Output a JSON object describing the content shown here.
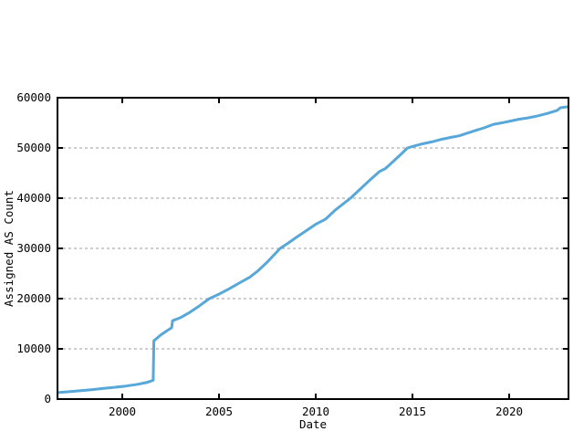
{
  "chart_data": {
    "type": "line",
    "title": "",
    "xlabel": "Date",
    "ylabel": "Assigned AS Count",
    "xlim": [
      1996.65,
      2023.07
    ],
    "ylim": [
      0,
      60000
    ],
    "xticks": [
      2000,
      2005,
      2010,
      2015,
      2020
    ],
    "yticks": [
      0,
      10000,
      20000,
      30000,
      40000,
      50000,
      60000
    ],
    "grid": {
      "horizontal": true,
      "vertical": false,
      "style": "dashed"
    },
    "legend": "none",
    "colors": {
      "line": "#58a7d9",
      "grid": "#9b9b9b",
      "border": "#000000",
      "text": "#000000",
      "background": "#ffffff"
    },
    "line_width": 3,
    "series": [
      {
        "name": "assigned-as-count",
        "points": [
          [
            1996.65,
            1300
          ],
          [
            1997.2,
            1450
          ],
          [
            1997.8,
            1650
          ],
          [
            1998.4,
            1850
          ],
          [
            1999.0,
            2100
          ],
          [
            1999.6,
            2350
          ],
          [
            2000.2,
            2600
          ],
          [
            2000.8,
            2950
          ],
          [
            2001.3,
            3350
          ],
          [
            2001.6,
            3750
          ],
          [
            2001.63,
            11600
          ],
          [
            2002.0,
            12800
          ],
          [
            2002.35,
            13700
          ],
          [
            2002.55,
            14200
          ],
          [
            2002.6,
            15600
          ],
          [
            2003.0,
            16200
          ],
          [
            2003.5,
            17300
          ],
          [
            2004.0,
            18600
          ],
          [
            2004.5,
            20000
          ],
          [
            2005.0,
            20900
          ],
          [
            2005.5,
            21900
          ],
          [
            2006.0,
            23000
          ],
          [
            2006.6,
            24300
          ],
          [
            2007.0,
            25500
          ],
          [
            2007.5,
            27300
          ],
          [
            2008.16,
            30000
          ],
          [
            2008.6,
            31100
          ],
          [
            2009.0,
            32200
          ],
          [
            2009.5,
            33500
          ],
          [
            2010.0,
            34800
          ],
          [
            2010.5,
            35800
          ],
          [
            2011.0,
            37600
          ],
          [
            2011.8,
            40000
          ],
          [
            2012.3,
            41800
          ],
          [
            2012.8,
            43600
          ],
          [
            2013.3,
            45300
          ],
          [
            2013.6,
            45900
          ],
          [
            2014.0,
            47300
          ],
          [
            2014.4,
            48700
          ],
          [
            2014.75,
            50000
          ],
          [
            2015.0,
            50300
          ],
          [
            2015.5,
            50800
          ],
          [
            2016.0,
            51200
          ],
          [
            2016.5,
            51700
          ],
          [
            2017.0,
            52100
          ],
          [
            2017.4,
            52400
          ],
          [
            2017.8,
            52900
          ],
          [
            2018.2,
            53400
          ],
          [
            2018.7,
            54000
          ],
          [
            2019.2,
            54700
          ],
          [
            2019.7,
            55050
          ],
          [
            2020.0,
            55300
          ],
          [
            2020.5,
            55700
          ],
          [
            2021.0,
            56000
          ],
          [
            2021.5,
            56400
          ],
          [
            2022.0,
            56900
          ],
          [
            2022.5,
            57500
          ],
          [
            2022.65,
            58000
          ],
          [
            2023.05,
            58200
          ]
        ]
      }
    ]
  }
}
